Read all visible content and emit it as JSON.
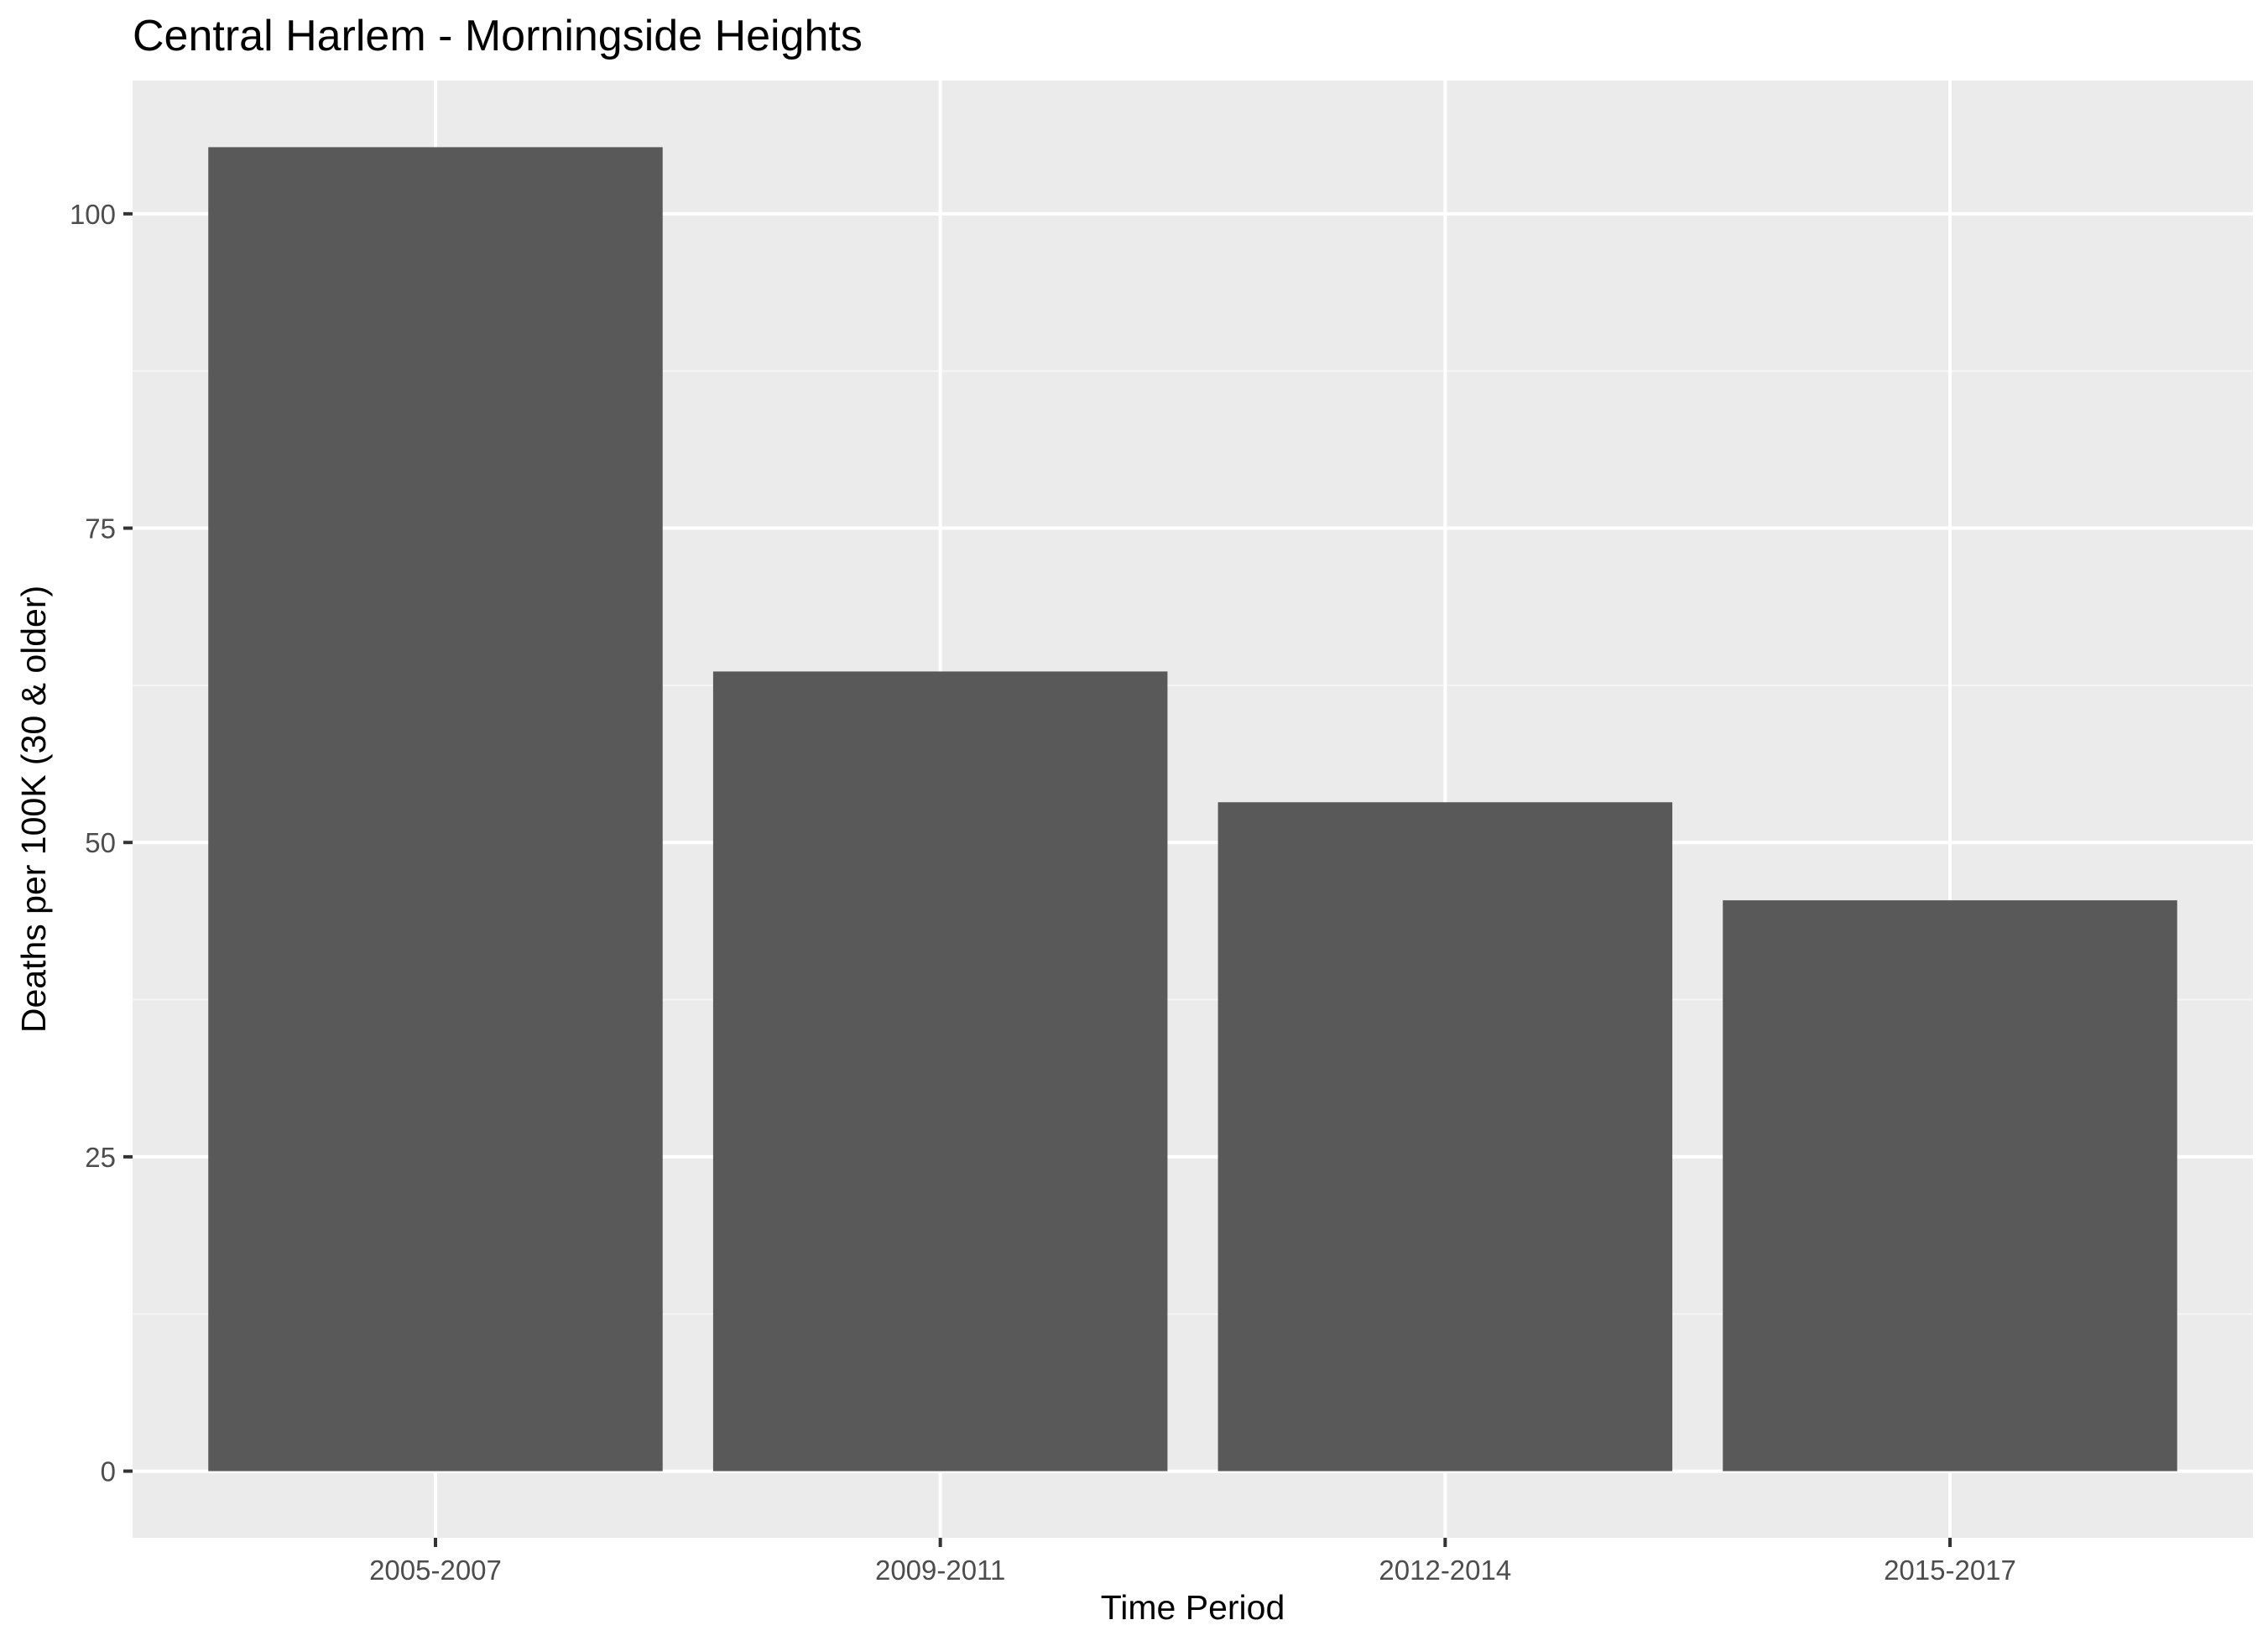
{
  "chart_data": {
    "type": "bar",
    "title": "Central Harlem - Morningside Heights",
    "xlabel": "Time Period",
    "ylabel": "Deaths per 100K (30 & older)",
    "categories": [
      "2005-2007",
      "2009-2011",
      "2012-2014",
      "2015-2017"
    ],
    "values": [
      105.3,
      63.6,
      53.2,
      45.4
    ],
    "ylim": [
      -5.3,
      110.6
    ],
    "yticks": [
      0,
      25,
      50,
      75,
      100
    ],
    "grid": true,
    "legend": "none",
    "colors": {
      "bar": "#595959",
      "panel": "#ebebeb",
      "grid_major": "#ffffff",
      "grid_minor": "#f5f5f5",
      "tick": "#333333",
      "tick_label": "#4d4d4d"
    }
  }
}
